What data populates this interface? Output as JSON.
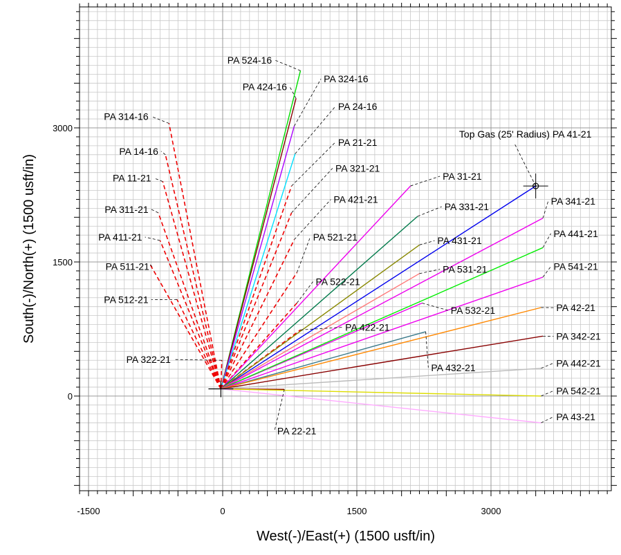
{
  "chart_data": {
    "type": "line",
    "title": "",
    "xlabel": "West(-)/East(+) (1500 usft/in)",
    "ylabel": "South(-)/North(+) (1500 usft/in)",
    "xlim": [
      -1600,
      4300
    ],
    "ylim": [
      -1100,
      4400
    ],
    "x_ticks": [
      -1500,
      0,
      1500,
      3000
    ],
    "y_ticks": [
      0,
      1500,
      3000
    ],
    "grid": true,
    "surface_origin": [
      -20,
      80
    ],
    "target": {
      "name": "Top Gas (25' Radius) PA 41-21",
      "x": 3500,
      "y": 2350
    },
    "series": [
      {
        "name": "PA 524-16",
        "color": "#00dd00",
        "style": "solid",
        "points": [
          [
            -20,
            80
          ],
          [
            870,
            3640
          ]
        ],
        "label_at": [
          550,
          3720
        ],
        "label_anchor": "end"
      },
      {
        "name": "PA 424-16",
        "color": "#880000",
        "style": "solid",
        "points": [
          [
            -20,
            80
          ],
          [
            820,
            3330
          ]
        ],
        "label_at": [
          720,
          3420
        ],
        "label_anchor": "end"
      },
      {
        "name": "PA 324-16",
        "color": "#aa00ff",
        "style": "solid",
        "points": [
          [
            -20,
            80
          ],
          [
            800,
            3020
          ]
        ],
        "label_at": [
          1130,
          3510
        ],
        "label_anchor": "start"
      },
      {
        "name": "PA 24-16",
        "color": "#00e0ff",
        "style": "solid",
        "points": [
          [
            -20,
            80
          ],
          [
            810,
            2710
          ]
        ],
        "label_at": [
          1290,
          3200
        ],
        "label_anchor": "start"
      },
      {
        "name": "PA 314-16",
        "color": "#ee0000",
        "style": "dashed",
        "points": [
          [
            -20,
            80
          ],
          [
            -600,
            3050
          ]
        ],
        "label_at": [
          -830,
          3090
        ],
        "label_anchor": "end"
      },
      {
        "name": "PA 14-16",
        "color": "#ee0000",
        "style": "dashed",
        "points": [
          [
            -20,
            80
          ],
          [
            -640,
            2700
          ]
        ],
        "label_at": [
          -720,
          2700
        ],
        "label_anchor": "end"
      },
      {
        "name": "PA 11-21",
        "color": "#ee0000",
        "style": "dashed",
        "points": [
          [
            -20,
            80
          ],
          [
            -670,
            2400
          ]
        ],
        "label_at": [
          -800,
          2400
        ],
        "label_anchor": "end"
      },
      {
        "name": "PA 311-21",
        "color": "#ee0000",
        "style": "dashed",
        "points": [
          [
            -20,
            80
          ],
          [
            -720,
            2050
          ]
        ],
        "label_at": [
          -830,
          2050
        ],
        "label_anchor": "end"
      },
      {
        "name": "PA 411-21",
        "color": "#ee0000",
        "style": "dashed",
        "points": [
          [
            -20,
            80
          ],
          [
            -700,
            1740
          ]
        ],
        "label_at": [
          -900,
          1740
        ],
        "label_anchor": "end"
      },
      {
        "name": "PA 511-21",
        "color": "#ee0000",
        "style": "dashed",
        "points": [
          [
            -20,
            80
          ],
          [
            -810,
            1470
          ]
        ],
        "label_at": [
          -820,
          1410
        ],
        "label_anchor": "end"
      },
      {
        "name": "PA 512-21",
        "color": "#ee0000",
        "style": "dashed",
        "points": [
          [
            -20,
            80
          ],
          [
            -510,
            1080
          ]
        ],
        "label_at": [
          -830,
          1040
        ],
        "label_anchor": "end"
      },
      {
        "name": "PA 21-21",
        "color": "#ee0000",
        "style": "dashed",
        "points": [
          [
            -20,
            80
          ],
          [
            770,
            2350
          ]
        ],
        "label_at": [
          1290,
          2800
        ],
        "label_anchor": "start"
      },
      {
        "name": "PA 321-21",
        "color": "#ee0000",
        "style": "dashed",
        "points": [
          [
            -20,
            80
          ],
          [
            770,
            2050
          ]
        ],
        "label_at": [
          1260,
          2510
        ],
        "label_anchor": "start"
      },
      {
        "name": "PA 421-21",
        "color": "#ee0000",
        "style": "dashed",
        "points": [
          [
            -20,
            80
          ],
          [
            800,
            1750
          ]
        ],
        "label_at": [
          1240,
          2160
        ],
        "label_anchor": "start"
      },
      {
        "name": "PA 521-21",
        "color": "#ee0000",
        "style": "dashed",
        "points": [
          [
            -20,
            80
          ],
          [
            830,
            1380
          ]
        ],
        "label_at": [
          1010,
          1740
        ],
        "label_anchor": "start"
      },
      {
        "name": "PA 522-21",
        "color": "#ee0000",
        "style": "dashed",
        "points": [
          [
            -20,
            80
          ],
          [
            830,
            1040
          ]
        ],
        "label_at": [
          1040,
          1240
        ],
        "label_anchor": "start"
      },
      {
        "name": "PA 422-21",
        "color": "#ee0000",
        "style": "dashed",
        "points": [
          [
            -20,
            80
          ],
          [
            870,
            740
          ]
        ],
        "label_at": [
          1370,
          730
        ],
        "label_anchor": "start"
      },
      {
        "name": "PA 322-21",
        "color": "#ee0000",
        "style": "dashed",
        "points": [
          [
            -20,
            80
          ],
          [
            -10,
            400
          ]
        ],
        "label_at": [
          -580,
          370
        ],
        "label_anchor": "end"
      },
      {
        "name": "PA 22-21",
        "color": "#880000",
        "style": "solid",
        "points": [
          [
            -20,
            80
          ],
          [
            690,
            75
          ]
        ],
        "label_at": [
          610,
          -430
        ],
        "label_anchor": "start"
      },
      {
        "name": "PA 31-21",
        "color": "#ee00ee",
        "style": "solid",
        "points": [
          [
            -20,
            80
          ],
          [
            2100,
            2350
          ]
        ],
        "label_at": [
          2460,
          2420
        ],
        "label_anchor": "start"
      },
      {
        "name": "PA 331-21",
        "color": "#007a4a",
        "style": "solid",
        "points": [
          [
            -20,
            80
          ],
          [
            2180,
            2010
          ]
        ],
        "label_at": [
          2480,
          2080
        ],
        "label_anchor": "start"
      },
      {
        "name": "PA 41-21",
        "color": "#0000ee",
        "style": "solid",
        "points": [
          [
            -20,
            80
          ],
          [
            3500,
            2350
          ]
        ],
        "label_at": null,
        "label_anchor": "start"
      },
      {
        "name": "PA 431-21",
        "color": "#888800",
        "style": "solid",
        "points": [
          [
            -20,
            80
          ],
          [
            2200,
            1690
          ]
        ],
        "label_at": [
          2400,
          1700
        ],
        "label_anchor": "start"
      },
      {
        "name": "PA 531-21",
        "color": "#ff7777",
        "style": "solid",
        "points": [
          [
            -20,
            80
          ],
          [
            2200,
            1370
          ]
        ],
        "label_at": [
          2460,
          1380
        ],
        "label_anchor": "start"
      },
      {
        "name": "PA 532-21",
        "color": "#ee00ee",
        "style": "solid",
        "points": [
          [
            -20,
            80
          ],
          [
            2230,
            1040
          ]
        ],
        "label_at": [
          2550,
          920
        ],
        "label_anchor": "start"
      },
      {
        "name": "PA 432-21",
        "color": "#3a7a8a",
        "style": "solid",
        "points": [
          [
            -20,
            80
          ],
          [
            2270,
            720
          ]
        ],
        "label_at": [
          2330,
          280
        ],
        "label_anchor": "start"
      },
      {
        "name": "PA 341-21",
        "color": "#ee00ee",
        "style": "solid",
        "points": [
          [
            -20,
            80
          ],
          [
            3580,
            1990
          ]
        ],
        "label_at": [
          3670,
          2140
        ],
        "label_anchor": "start"
      },
      {
        "name": "PA 441-21",
        "color": "#00ee00",
        "style": "solid",
        "points": [
          [
            -20,
            80
          ],
          [
            3580,
            1660
          ]
        ],
        "label_at": [
          3700,
          1780
        ],
        "label_anchor": "start"
      },
      {
        "name": "PA 541-21",
        "color": "#ee00ee",
        "style": "solid",
        "points": [
          [
            -20,
            80
          ],
          [
            3580,
            1330
          ]
        ],
        "label_at": [
          3700,
          1410
        ],
        "label_anchor": "start"
      },
      {
        "name": "PA 42-21",
        "color": "#ff8800",
        "style": "solid",
        "points": [
          [
            -20,
            80
          ],
          [
            3560,
            990
          ]
        ],
        "label_at": [
          3730,
          950
        ],
        "label_anchor": "start"
      },
      {
        "name": "PA 342-21",
        "color": "#880000",
        "style": "solid",
        "points": [
          [
            -20,
            80
          ],
          [
            3580,
            670
          ]
        ],
        "label_at": [
          3730,
          630
        ],
        "label_anchor": "start"
      },
      {
        "name": "PA 442-21",
        "color": "#bbbbbb",
        "style": "solid",
        "points": [
          [
            -20,
            80
          ],
          [
            3560,
            310
          ]
        ],
        "label_at": [
          3730,
          330
        ],
        "label_anchor": "start"
      },
      {
        "name": "PA 542-21",
        "color": "#dddd00",
        "style": "solid",
        "points": [
          [
            -20,
            80
          ],
          [
            3560,
            0
          ]
        ],
        "label_at": [
          3730,
          20
        ],
        "label_anchor": "start"
      },
      {
        "name": "PA 43-21",
        "color": "#ffaaff",
        "style": "solid",
        "points": [
          [
            -20,
            80
          ],
          [
            3560,
            -300
          ]
        ],
        "label_at": [
          3730,
          -270
        ],
        "label_anchor": "start"
      }
    ]
  }
}
